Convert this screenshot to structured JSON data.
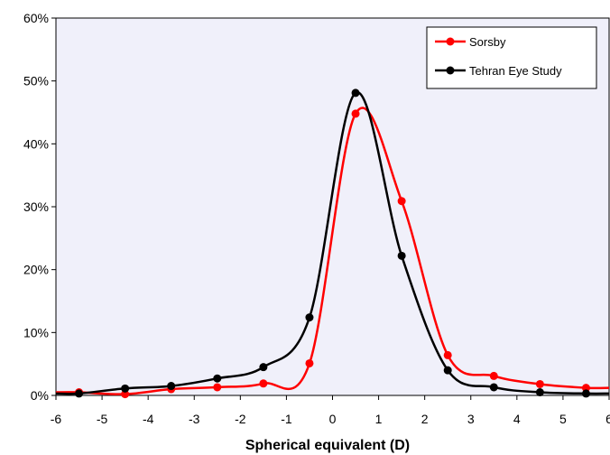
{
  "chart_data": {
    "type": "line",
    "title": "",
    "xlabel": "Spherical equivalent (D)",
    "ylabel": "",
    "xlim": [
      -6,
      6
    ],
    "ylim": [
      0,
      60
    ],
    "x_ticks": [
      -6,
      -5,
      -4,
      -3,
      -2,
      -1,
      0,
      1,
      2,
      3,
      4,
      5,
      6
    ],
    "x_tick_labels": [
      "-6",
      "-5",
      "-4",
      "-3",
      "-2",
      "-1",
      "0",
      "1",
      "2",
      "3",
      "4",
      "5",
      "6"
    ],
    "y_ticks": [
      0,
      10,
      20,
      30,
      40,
      50,
      60
    ],
    "y_tick_labels": [
      "0%",
      "10%",
      "20%",
      "30%",
      "40%",
      "50%",
      "60%"
    ],
    "grid": false,
    "legend_position": "top-right",
    "plot_background": "#f0f0fa",
    "series": [
      {
        "name": "Sorsby",
        "color": "#ff0000",
        "x": [
          -5.5,
          -4.5,
          -3.5,
          -2.5,
          -1.5,
          -0.5,
          0.5,
          1.5,
          2.5,
          3.5,
          4.5,
          5.5
        ],
        "values": [
          0.5,
          0.2,
          1.0,
          1.3,
          1.9,
          5.1,
          44.8,
          30.9,
          6.4,
          3.1,
          1.8,
          1.2
        ]
      },
      {
        "name": "Tehran Eye Study",
        "color": "#000000",
        "x": [
          -5.5,
          -4.5,
          -3.5,
          -2.5,
          -1.5,
          -0.5,
          0.5,
          1.5,
          2.5,
          3.5,
          4.5,
          5.5
        ],
        "values": [
          0.3,
          1.1,
          1.5,
          2.7,
          4.5,
          12.4,
          48.1,
          22.2,
          4.0,
          1.3,
          0.5,
          0.3
        ]
      }
    ]
  }
}
